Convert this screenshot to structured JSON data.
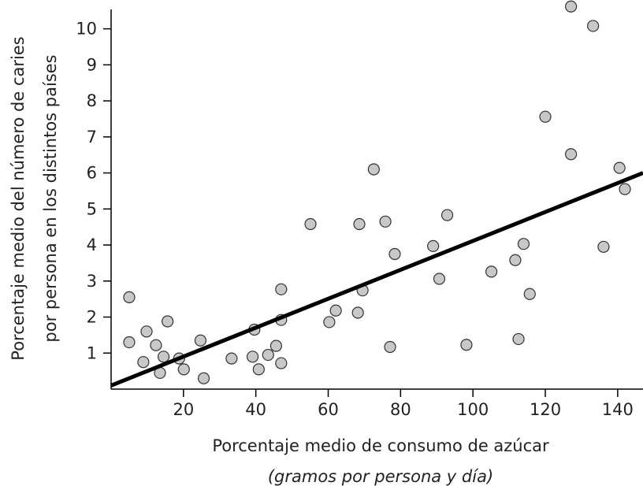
{
  "chart_data": {
    "type": "scatter",
    "xlabel": "Porcentaje medio de consumo de azúcar",
    "xlabel_line2": "(gramos por persona y día)",
    "ylabel": "Porcentaje medio del número de caries",
    "ylabel_line2": "por persona en los distintos países",
    "xlim": [
      0,
      147
    ],
    "ylim": [
      0,
      10.8
    ],
    "xticks": [
      20,
      40,
      60,
      80,
      100,
      120,
      140
    ],
    "yticks": [
      1,
      2,
      3,
      4,
      5,
      6,
      7,
      8,
      9,
      10
    ],
    "grid": false,
    "legend": "none",
    "marker_fill": "#c8c8c8",
    "marker_stroke": "#333333",
    "line_color": "#000000",
    "trend_line": {
      "x": [
        0,
        147
      ],
      "y": [
        0.1,
        6.0
      ]
    },
    "points": [
      {
        "x": 5,
        "y": 2.55
      },
      {
        "x": 5,
        "y": 1.3
      },
      {
        "x": 8.9,
        "y": 0.75
      },
      {
        "x": 9.8,
        "y": 1.6
      },
      {
        "x": 12.4,
        "y": 1.22
      },
      {
        "x": 13.5,
        "y": 0.45
      },
      {
        "x": 14.5,
        "y": 0.9
      },
      {
        "x": 15.6,
        "y": 1.88
      },
      {
        "x": 18.8,
        "y": 0.85
      },
      {
        "x": 20.1,
        "y": 0.55
      },
      {
        "x": 24.7,
        "y": 1.35
      },
      {
        "x": 25.6,
        "y": 0.3
      },
      {
        "x": 33.3,
        "y": 0.85
      },
      {
        "x": 39.1,
        "y": 0.9
      },
      {
        "x": 39.6,
        "y": 1.65
      },
      {
        "x": 40.8,
        "y": 0.55
      },
      {
        "x": 43.4,
        "y": 0.95
      },
      {
        "x": 45.6,
        "y": 1.2
      },
      {
        "x": 47,
        "y": 0.72
      },
      {
        "x": 47,
        "y": 1.92
      },
      {
        "x": 47,
        "y": 2.77
      },
      {
        "x": 55.1,
        "y": 4.58
      },
      {
        "x": 60.3,
        "y": 1.86
      },
      {
        "x": 62.1,
        "y": 2.18
      },
      {
        "x": 68.2,
        "y": 2.12
      },
      {
        "x": 68.6,
        "y": 4.58
      },
      {
        "x": 69.5,
        "y": 2.74
      },
      {
        "x": 72.6,
        "y": 6.1
      },
      {
        "x": 75.8,
        "y": 4.65
      },
      {
        "x": 77.1,
        "y": 1.17
      },
      {
        "x": 78.4,
        "y": 3.75
      },
      {
        "x": 89,
        "y": 3.97
      },
      {
        "x": 90.7,
        "y": 3.06
      },
      {
        "x": 92.9,
        "y": 4.83
      },
      {
        "x": 98.2,
        "y": 1.23
      },
      {
        "x": 105.1,
        "y": 3.26
      },
      {
        "x": 111.7,
        "y": 3.58
      },
      {
        "x": 112.6,
        "y": 1.39
      },
      {
        "x": 114,
        "y": 4.03
      },
      {
        "x": 115.7,
        "y": 2.64
      },
      {
        "x": 120,
        "y": 7.56
      },
      {
        "x": 127.1,
        "y": 10.62
      },
      {
        "x": 127.1,
        "y": 6.52
      },
      {
        "x": 133.2,
        "y": 10.08
      },
      {
        "x": 136.1,
        "y": 3.95
      },
      {
        "x": 140.5,
        "y": 6.14
      },
      {
        "x": 142,
        "y": 5.55
      }
    ]
  }
}
